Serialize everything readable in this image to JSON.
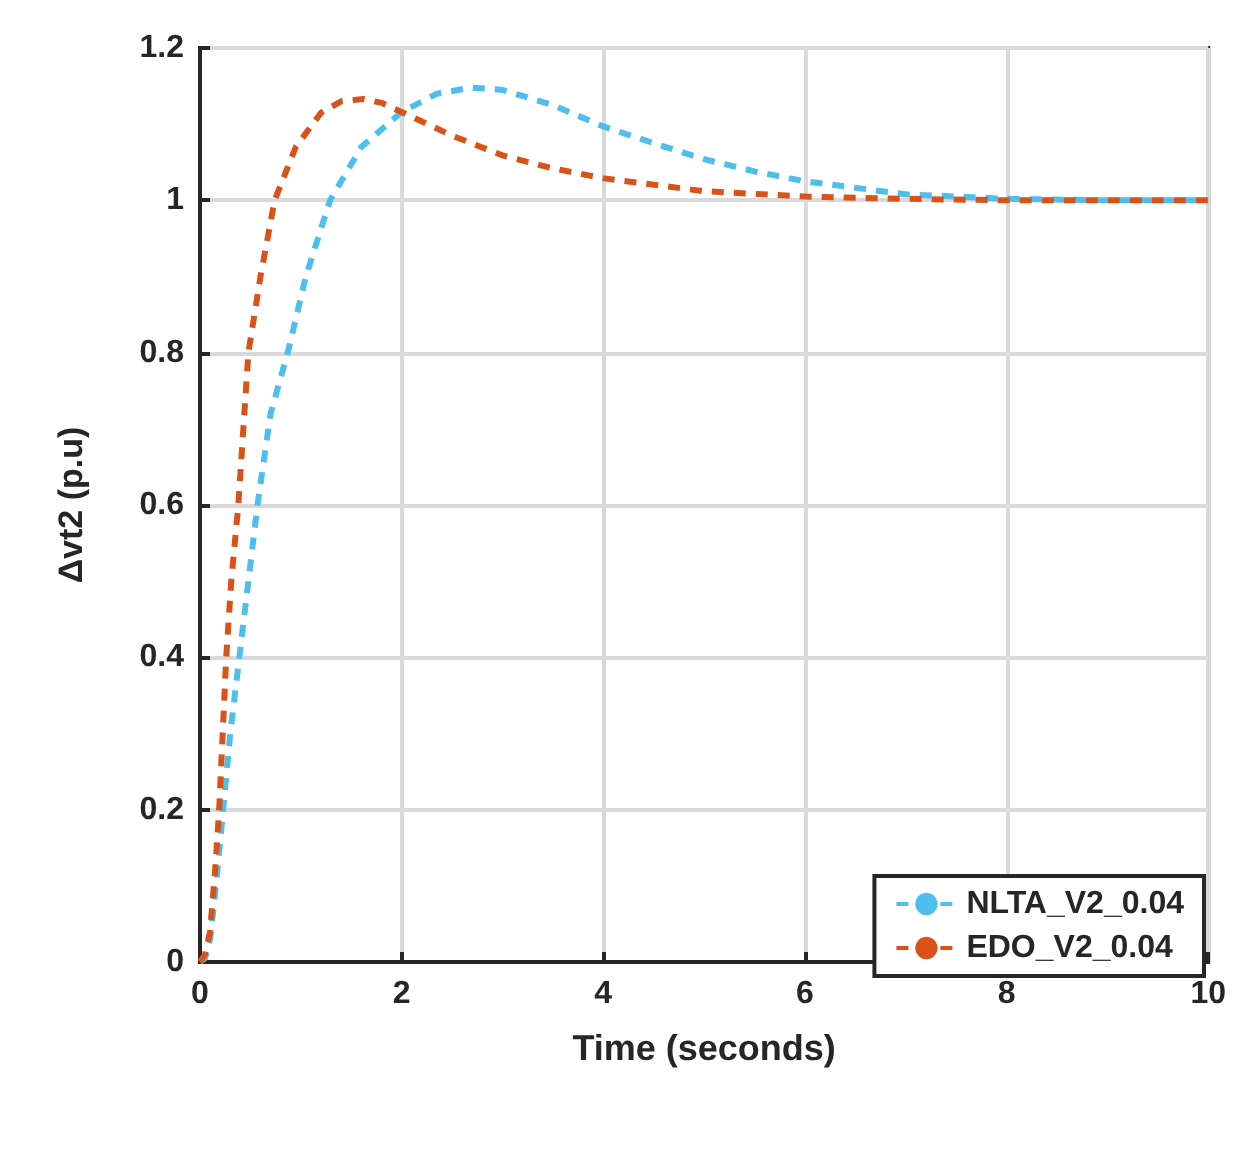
{
  "chart_data": {
    "type": "line",
    "xlabel": "Time (seconds)",
    "ylabel": "Δvt2 (p.u)",
    "xlim": [
      0,
      10
    ],
    "xticks": [
      0,
      2,
      4,
      6,
      8,
      10
    ],
    "ylim": [
      0,
      1.2
    ],
    "yticks": [
      0,
      0.2,
      0.4,
      0.6,
      0.8,
      1,
      1.2
    ],
    "grid": true,
    "legend": "bottom right",
    "line_style": "dashed",
    "marker": "none",
    "series": [
      {
        "name": "NLTA_V2_0.04",
        "color": "#4dbeee",
        "x": [
          0,
          0.05,
          0.1,
          0.15,
          0.23,
          0.3,
          0.39,
          0.48,
          0.57,
          0.7,
          0.87,
          1.05,
          1.29,
          1.6,
          2,
          2.35,
          2.69,
          3,
          3.5,
          4,
          4.5,
          5,
          5.5,
          6,
          7,
          8,
          9,
          10
        ],
        "values": [
          0,
          0.005,
          0.03,
          0.09,
          0.2,
          0.3,
          0.4,
          0.5,
          0.6,
          0.72,
          0.8,
          0.9,
          1.0,
          1.07,
          1.116,
          1.14,
          1.148,
          1.145,
          1.125,
          1.097,
          1.075,
          1.054,
          1.038,
          1.025,
          1.008,
          1.002,
          1.0,
          1.0
        ]
      },
      {
        "name": "EDO_V2_0.04",
        "color": "#d95319",
        "x": [
          0,
          0.05,
          0.1,
          0.15,
          0.19,
          0.26,
          0.31,
          0.38,
          0.48,
          0.6,
          0.74,
          0.95,
          1.2,
          1.4,
          1.62,
          1.8,
          2,
          2.5,
          3,
          3.5,
          4,
          5,
          6,
          7,
          8,
          9,
          10
        ],
        "values": [
          0,
          0.01,
          0.04,
          0.12,
          0.2,
          0.4,
          0.5,
          0.6,
          0.8,
          0.9,
          1.0,
          1.07,
          1.115,
          1.13,
          1.133,
          1.128,
          1.116,
          1.085,
          1.059,
          1.042,
          1.029,
          1.012,
          1.005,
          1.002,
          1.0,
          1.0,
          1.0
        ]
      }
    ]
  }
}
